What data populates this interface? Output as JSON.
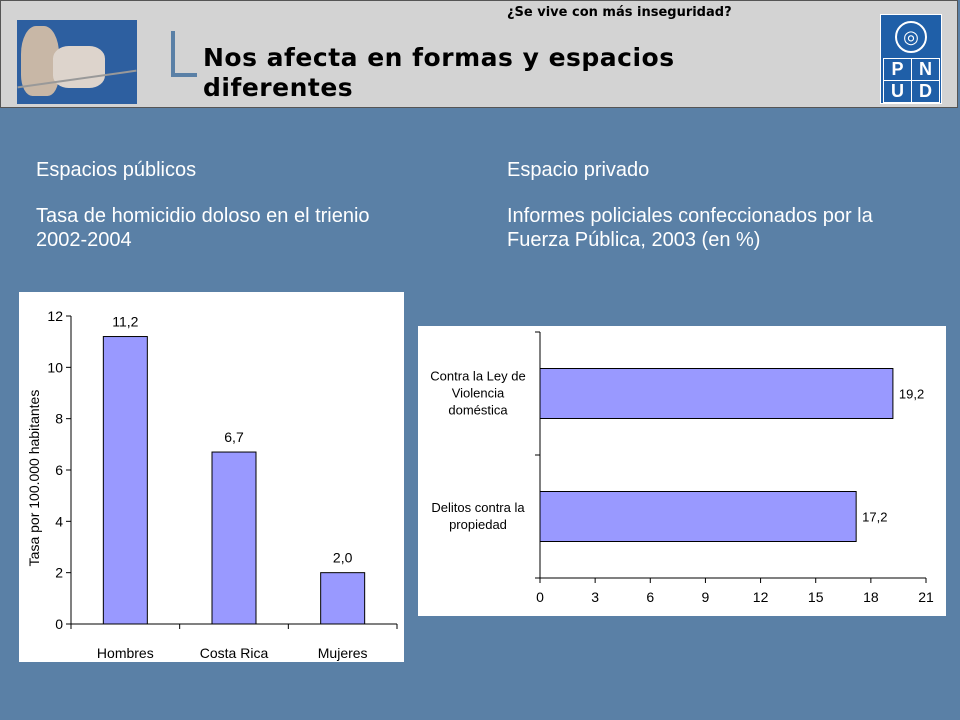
{
  "header": {
    "top_text": "¿Se vive con más inseguridad?",
    "title": "Nos afecta en formas y espacios diferentes",
    "logo_letters": [
      "P",
      "N",
      "U",
      "D"
    ]
  },
  "left": {
    "heading": "Espacios públicos",
    "subheading": "Tasa de homicidio doloso en el trienio 2002-2004"
  },
  "right": {
    "heading": "Espacio privado",
    "subheading": "Informes policiales confeccionados por la Fuerza Pública, 2003 (en %)"
  },
  "colors": {
    "bar": "#9999ff",
    "background": "#5a80a6",
    "header": "#d3d3d3",
    "logo": "#1f5fa8"
  },
  "chart_data": [
    {
      "type": "bar",
      "categories": [
        "Hombres",
        "Costa Rica",
        "Mujeres"
      ],
      "values": [
        11.2,
        6.7,
        2.0
      ],
      "data_labels": [
        "11,2",
        "6,7",
        "2,0"
      ],
      "ylabel": "Tasa por 100.000 habitantes",
      "ylim": [
        0,
        12
      ],
      "yticks": [
        0,
        2,
        4,
        6,
        8,
        10,
        12
      ],
      "grid": false
    },
    {
      "type": "bar",
      "orientation": "horizontal",
      "categories": [
        "Contra la Ley de Violencia doméstica",
        "Delitos contra la propiedad"
      ],
      "category_lines": [
        [
          "Contra la Ley de",
          "Violencia",
          "doméstica"
        ],
        [
          "Delitos contra la",
          "propiedad"
        ]
      ],
      "values": [
        19.2,
        17.2
      ],
      "data_labels": [
        "19,2",
        "17,2"
      ],
      "xlim": [
        0,
        21
      ],
      "xticks": [
        0,
        3,
        6,
        9,
        12,
        15,
        18,
        21
      ],
      "grid": false
    }
  ]
}
